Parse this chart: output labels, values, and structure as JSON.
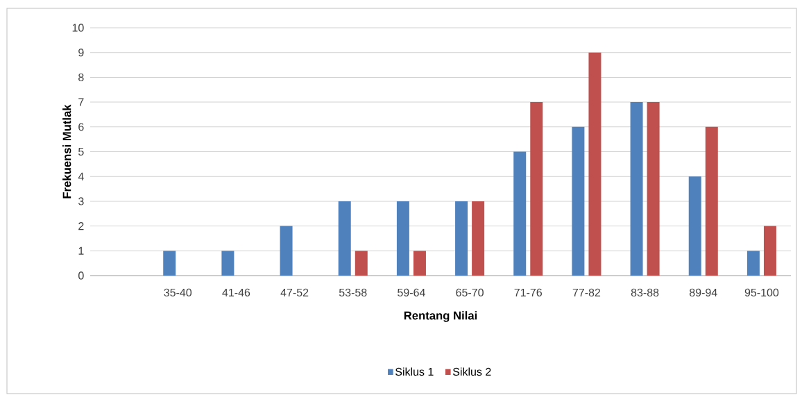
{
  "chart_data": {
    "type": "bar",
    "xlabel": "Rentang Nilai",
    "ylabel": "Frekuensi Mutlak",
    "categories": [
      null,
      "35-40",
      "41-46",
      "47-52",
      "53-58",
      "59-64",
      "65-70",
      "71-76",
      "77-82",
      "83-88",
      "89-94",
      "95-100"
    ],
    "series": [
      {
        "name": "Siklus 1",
        "color": "#4f81bd",
        "values": [
          null,
          1,
          1,
          2,
          3,
          3,
          3,
          5,
          6,
          7,
          4,
          1
        ]
      },
      {
        "name": "Siklus 2",
        "color": "#c0504d",
        "values": [
          null,
          null,
          null,
          null,
          1,
          1,
          3,
          7,
          9,
          7,
          6,
          2
        ]
      }
    ],
    "ylim": [
      0,
      10
    ],
    "yticks": [
      0,
      1,
      2,
      3,
      4,
      5,
      6,
      7,
      8,
      9,
      10
    ],
    "grid": "y",
    "legend": "bottom"
  }
}
